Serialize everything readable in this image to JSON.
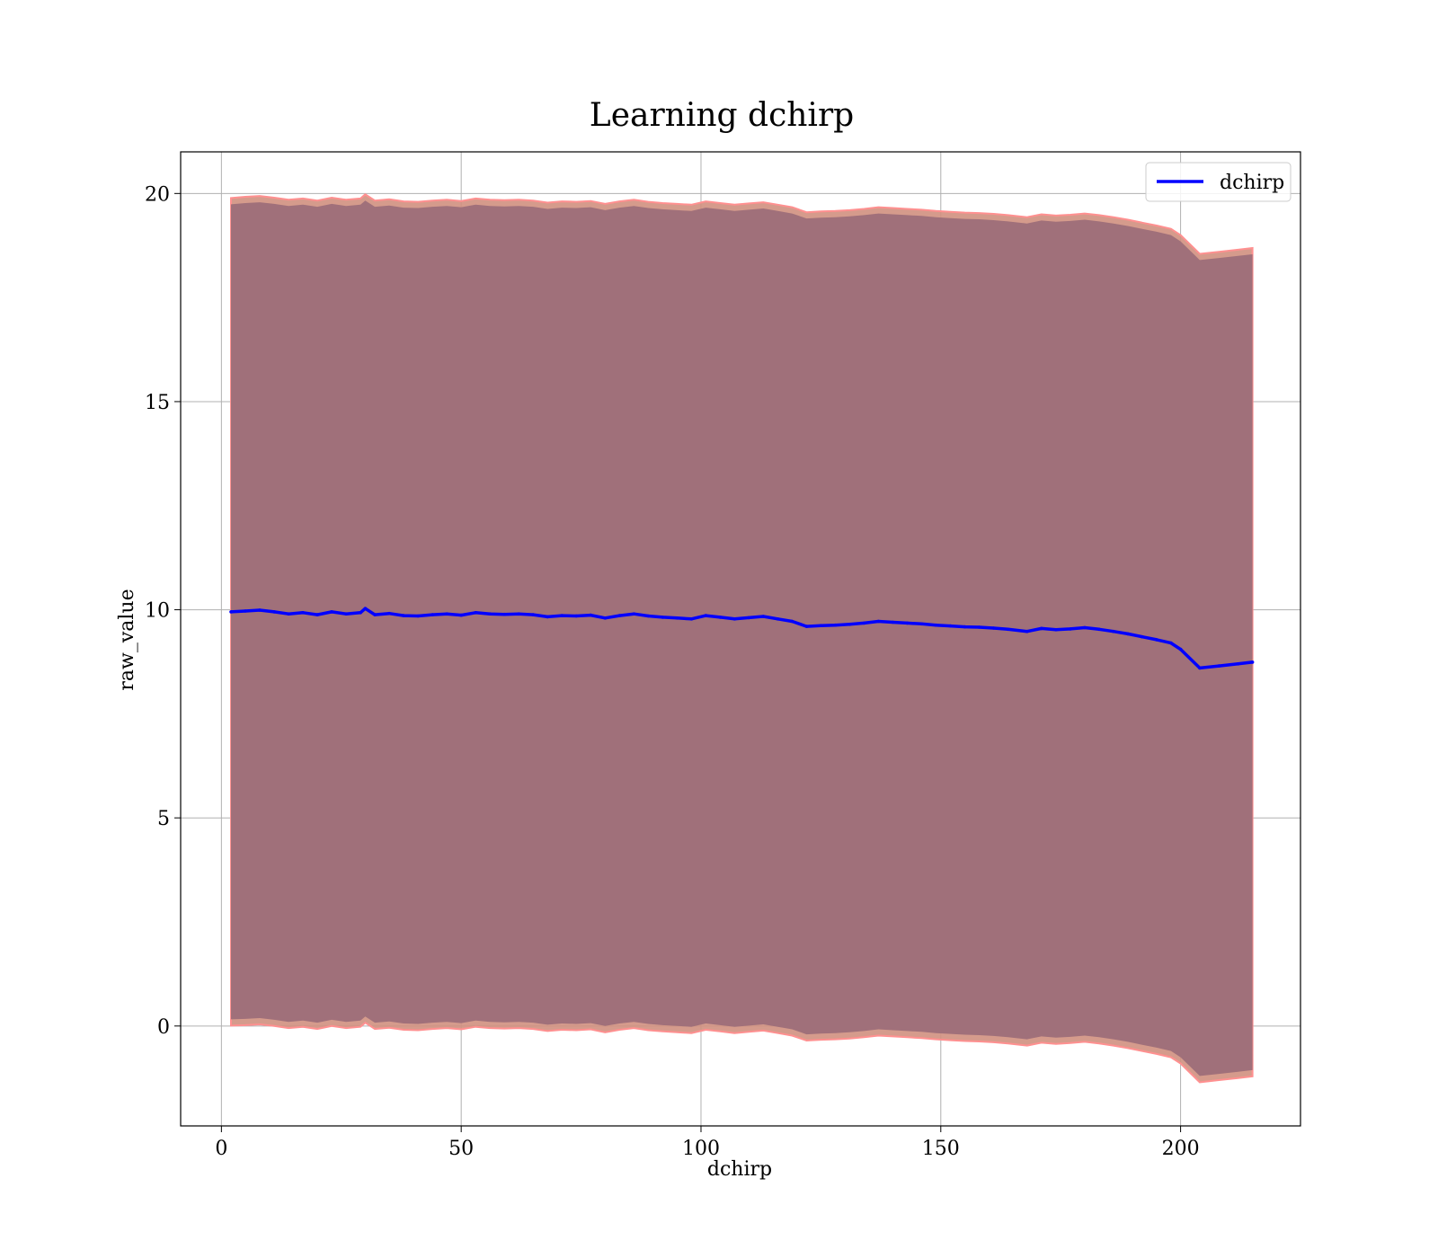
{
  "chart_data": {
    "type": "line",
    "title": "Learning dchirp",
    "xlabel": "dchirp",
    "ylabel": "raw_value",
    "xlim": [
      -8.5,
      225
    ],
    "ylim": [
      -2.4,
      21.0
    ],
    "xticks": [
      0,
      50,
      100,
      150,
      200
    ],
    "yticks": [
      0,
      5,
      10,
      15,
      20
    ],
    "grid": true,
    "legend": {
      "position": "top-right",
      "entries": [
        "dchirp"
      ]
    },
    "series": [
      {
        "name": "dchirp",
        "color": "#0000ff",
        "x": [
          2,
          5,
          8,
          11,
          14,
          17,
          20,
          23,
          26,
          29,
          30,
          32,
          35,
          38,
          41,
          44,
          47,
          50,
          53,
          56,
          59,
          62,
          65,
          68,
          71,
          74,
          77,
          80,
          83,
          86,
          89,
          92,
          95,
          98,
          101,
          104,
          107,
          110,
          113,
          116,
          119,
          122,
          125,
          128,
          131,
          134,
          137,
          140,
          143,
          146,
          149,
          152,
          155,
          158,
          161,
          164,
          168,
          171,
          174,
          177,
          180,
          183,
          186,
          189,
          192,
          195,
          198,
          200,
          204,
          208,
          212,
          215
        ],
        "values": [
          9.95,
          9.97,
          9.99,
          9.95,
          9.9,
          9.93,
          9.88,
          9.95,
          9.9,
          9.93,
          10.03,
          9.88,
          9.91,
          9.86,
          9.85,
          9.88,
          9.9,
          9.87,
          9.93,
          9.9,
          9.89,
          9.9,
          9.88,
          9.83,
          9.86,
          9.85,
          9.87,
          9.8,
          9.86,
          9.9,
          9.85,
          9.82,
          9.8,
          9.78,
          9.86,
          9.82,
          9.78,
          9.81,
          9.84,
          9.78,
          9.72,
          9.6,
          9.62,
          9.63,
          9.65,
          9.68,
          9.72,
          9.7,
          9.68,
          9.66,
          9.63,
          9.61,
          9.59,
          9.58,
          9.56,
          9.53,
          9.48,
          9.55,
          9.52,
          9.54,
          9.57,
          9.53,
          9.48,
          9.42,
          9.35,
          9.28,
          9.2,
          9.05,
          8.6,
          8.65,
          8.7,
          8.74
        ],
        "band_inner": {
          "upper": [
            19.74,
            19.77,
            19.79,
            19.75,
            19.7,
            19.73,
            19.68,
            19.75,
            19.7,
            19.73,
            19.83,
            19.68,
            19.71,
            19.66,
            19.65,
            19.68,
            19.7,
            19.67,
            19.73,
            19.7,
            19.69,
            19.7,
            19.68,
            19.63,
            19.66,
            19.65,
            19.67,
            19.6,
            19.66,
            19.7,
            19.65,
            19.62,
            19.6,
            19.58,
            19.66,
            19.62,
            19.58,
            19.61,
            19.64,
            19.58,
            19.52,
            19.4,
            19.42,
            19.43,
            19.45,
            19.48,
            19.52,
            19.5,
            19.48,
            19.46,
            19.43,
            19.41,
            19.39,
            19.38,
            19.36,
            19.33,
            19.28,
            19.35,
            19.32,
            19.34,
            19.37,
            19.33,
            19.28,
            19.22,
            19.15,
            19.08,
            19.0,
            18.85,
            18.4,
            18.45,
            18.5,
            18.54
          ],
          "lower": [
            0.16,
            0.17,
            0.19,
            0.15,
            0.1,
            0.13,
            0.08,
            0.15,
            0.1,
            0.13,
            0.23,
            0.08,
            0.11,
            0.06,
            0.05,
            0.08,
            0.1,
            0.07,
            0.13,
            0.1,
            0.09,
            0.1,
            0.08,
            0.03,
            0.06,
            0.05,
            0.07,
            0.0,
            0.06,
            0.1,
            0.05,
            0.02,
            0.0,
            -0.02,
            0.06,
            0.02,
            -0.02,
            0.01,
            0.04,
            -0.02,
            -0.08,
            -0.2,
            -0.18,
            -0.17,
            -0.15,
            -0.12,
            -0.08,
            -0.1,
            -0.12,
            -0.14,
            -0.17,
            -0.19,
            -0.21,
            -0.22,
            -0.24,
            -0.27,
            -0.32,
            -0.25,
            -0.28,
            -0.26,
            -0.23,
            -0.27,
            -0.32,
            -0.38,
            -0.45,
            -0.52,
            -0.6,
            -0.75,
            -1.2,
            -1.15,
            -1.1,
            -1.06
          ]
        },
        "band_outer": {
          "upper": [
            19.89,
            19.92,
            19.94,
            19.9,
            19.85,
            19.88,
            19.83,
            19.9,
            19.85,
            19.88,
            19.98,
            19.83,
            19.86,
            19.81,
            19.8,
            19.83,
            19.85,
            19.82,
            19.88,
            19.85,
            19.84,
            19.85,
            19.83,
            19.78,
            19.81,
            19.8,
            19.82,
            19.75,
            19.81,
            19.85,
            19.8,
            19.77,
            19.75,
            19.73,
            19.81,
            19.77,
            19.73,
            19.76,
            19.79,
            19.73,
            19.67,
            19.55,
            19.57,
            19.58,
            19.6,
            19.63,
            19.67,
            19.65,
            19.63,
            19.61,
            19.58,
            19.56,
            19.54,
            19.53,
            19.51,
            19.48,
            19.43,
            19.5,
            19.47,
            19.49,
            19.52,
            19.48,
            19.43,
            19.37,
            19.3,
            19.23,
            19.15,
            19.0,
            18.55,
            18.6,
            18.65,
            18.69
          ],
          "lower": [
            0.01,
            0.02,
            0.04,
            0.0,
            -0.05,
            -0.02,
            -0.07,
            0.0,
            -0.05,
            -0.02,
            0.08,
            -0.07,
            -0.04,
            -0.09,
            -0.1,
            -0.07,
            -0.05,
            -0.08,
            -0.02,
            -0.05,
            -0.06,
            -0.05,
            -0.07,
            -0.12,
            -0.09,
            -0.1,
            -0.08,
            -0.15,
            -0.09,
            -0.05,
            -0.1,
            -0.13,
            -0.15,
            -0.17,
            -0.09,
            -0.13,
            -0.17,
            -0.14,
            -0.11,
            -0.17,
            -0.23,
            -0.35,
            -0.33,
            -0.32,
            -0.3,
            -0.27,
            -0.23,
            -0.25,
            -0.27,
            -0.29,
            -0.32,
            -0.34,
            -0.36,
            -0.37,
            -0.39,
            -0.42,
            -0.47,
            -0.4,
            -0.43,
            -0.41,
            -0.38,
            -0.42,
            -0.47,
            -0.53,
            -0.6,
            -0.67,
            -0.75,
            -0.9,
            -1.35,
            -1.3,
            -1.25,
            -1.21
          ]
        }
      }
    ]
  },
  "colors": {
    "line": "#0000ff",
    "band_inner": "#a0707a",
    "band_outer": "#d09080",
    "band_edge": "#ff9090",
    "grid": "#b0b0b0",
    "axes": "#000000"
  }
}
